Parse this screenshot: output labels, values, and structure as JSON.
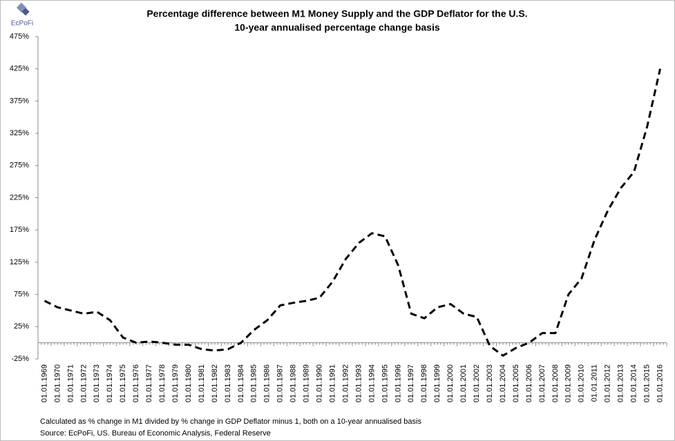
{
  "logo": "EcPoFi",
  "chart_data": {
    "type": "line",
    "title": "Percentage difference between M1 Money Supply and the GDP Deflator for the U.S.",
    "subtitle": "10-year annualised percentage change basis",
    "notes": [
      "Calculated as % change in M1 divided by % change in GDP Deflator minus 1, both on a 10-year annualised basis",
      "Source: EcPoFi,  US. Bureau of Economic Analysis, Federal Reserve"
    ],
    "categories": [
      "01.01.1969",
      "01.01.1970",
      "01.01.1971",
      "01.01.1972",
      "01.01.1973",
      "01.01.1974",
      "01.01.1975",
      "01.01.1976",
      "01.01.1977",
      "01.01.1978",
      "01.01.1979",
      "01.01.1980",
      "01.01.1981",
      "01.01.1982",
      "01.01.1983",
      "01.01.1984",
      "01.01.1985",
      "01.01.1986",
      "01.01.1987",
      "01.01.1988",
      "01.01.1989",
      "01.01.1990",
      "01.01.1991",
      "01.01.1992",
      "01.01.1993",
      "01.01.1994",
      "01.01.1995",
      "01.01.1996",
      "01.01.1997",
      "01.01.1998",
      "01.01.1999",
      "01.01.2000",
      "01.01.2001",
      "01.01.2002",
      "01.01.2003",
      "01.01.2004",
      "01.01.2005",
      "01.01.2006",
      "01.01.2007",
      "01.01.2008",
      "01.01.2009",
      "01.01.2010",
      "01.01.2011",
      "01.01.2012",
      "01.01.2013",
      "01.01.2014",
      "01.01.2015",
      "01.01.2016"
    ],
    "values": [
      65,
      55,
      50,
      45,
      48,
      35,
      8,
      0,
      2,
      0,
      -3,
      -3,
      -10,
      -12,
      -10,
      0,
      20,
      35,
      58,
      62,
      65,
      70,
      95,
      130,
      155,
      170,
      165,
      120,
      45,
      38,
      55,
      60,
      45,
      40,
      -5,
      -20,
      -8,
      0,
      15,
      15,
      75,
      100,
      160,
      205,
      240,
      265,
      335,
      425
    ],
    "color": "#000000",
    "ylim": [
      -25,
      475
    ],
    "yticks": [
      {
        "value": -25,
        "label": "-25%"
      },
      {
        "value": 25,
        "label": "25%"
      },
      {
        "value": 75,
        "label": "75%"
      },
      {
        "value": 125,
        "label": "125%"
      },
      {
        "value": 175,
        "label": "175%"
      },
      {
        "value": 225,
        "label": "225%"
      },
      {
        "value": 275,
        "label": "275%"
      },
      {
        "value": 325,
        "label": "325%"
      },
      {
        "value": 375,
        "label": "375%"
      },
      {
        "value": 425,
        "label": "425%"
      },
      {
        "value": 475,
        "label": "475%"
      }
    ]
  }
}
